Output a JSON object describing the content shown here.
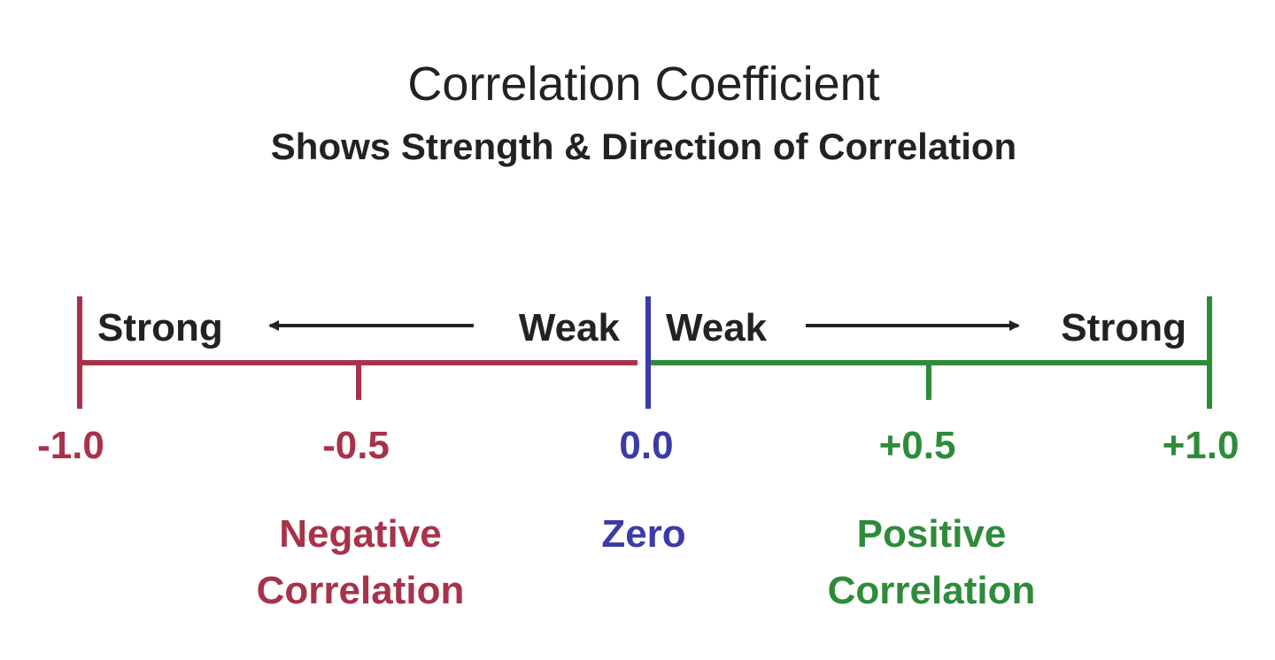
{
  "title": "Correlation Coefficient",
  "subtitle": "Shows Strength & Direction of Correlation",
  "scale": {
    "ticks": [
      {
        "value": -1.0,
        "label": "-1.0",
        "side": "negative"
      },
      {
        "value": -0.5,
        "label": "-0.5",
        "side": "negative"
      },
      {
        "value": 0.0,
        "label": "0.0",
        "side": "zero"
      },
      {
        "value": 0.5,
        "label": "+0.5",
        "side": "positive"
      },
      {
        "value": 1.0,
        "label": "+1.0",
        "side": "positive"
      }
    ],
    "range": [
      -1.0,
      1.0
    ]
  },
  "negative": {
    "strong_label": "Strong",
    "weak_label": "Weak",
    "category_line1": "Negative",
    "category_line2": "Correlation"
  },
  "zero": {
    "category_label": "Zero"
  },
  "positive": {
    "weak_label": "Weak",
    "strong_label": "Strong",
    "category_line1": "Positive",
    "category_line2": "Correlation"
  },
  "colors": {
    "title": "#222222",
    "arrow": "#222222",
    "negative": "#a8324a",
    "zero": "#3a3aa8",
    "positive": "#2e8b3a"
  }
}
